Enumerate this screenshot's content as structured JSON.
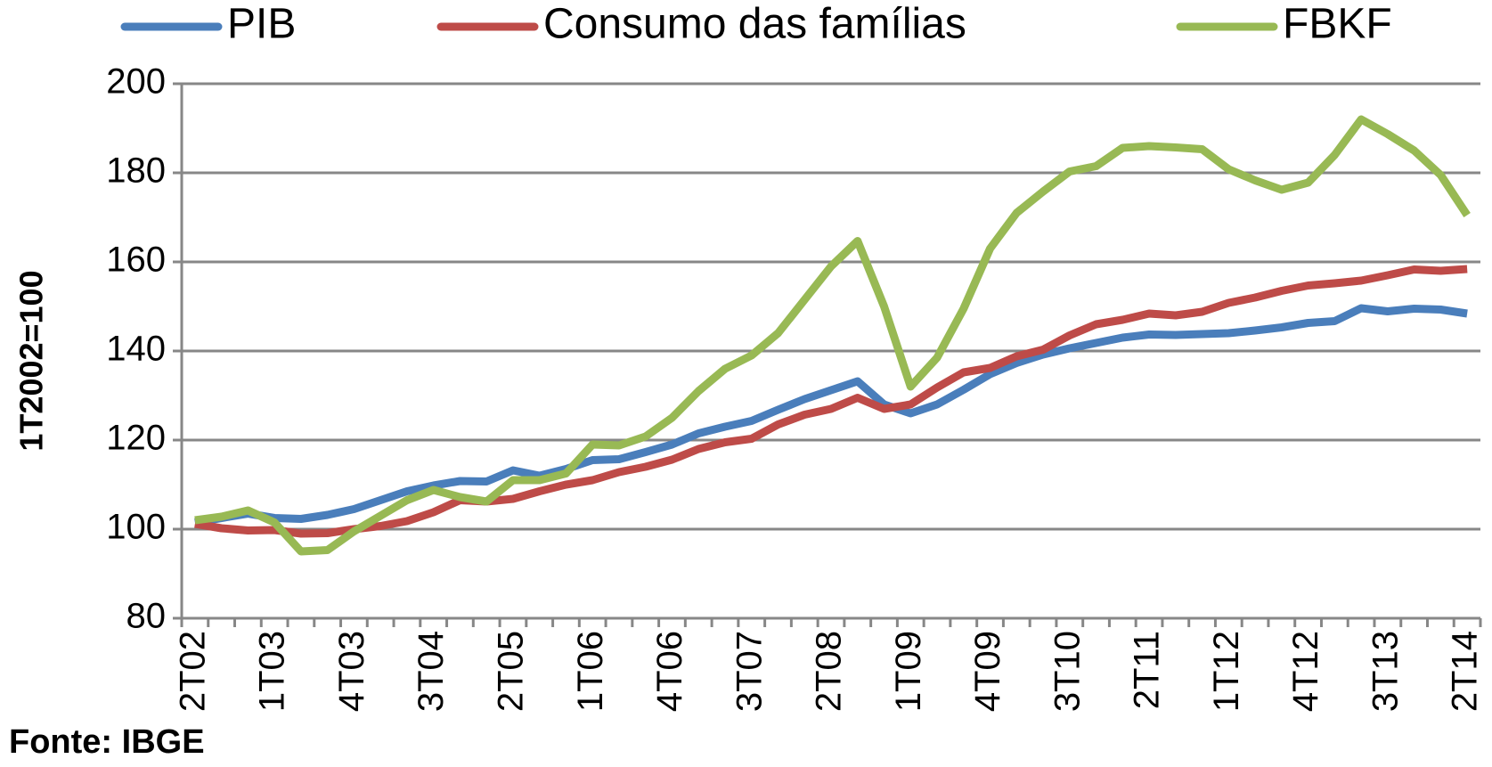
{
  "chart_data": {
    "type": "line",
    "y_label": "1T2002=100",
    "source": "Fonte: IBGE",
    "categories": [
      "2T02",
      null,
      null,
      "1T03",
      null,
      null,
      "4T03",
      null,
      null,
      "3T04",
      null,
      null,
      "2T05",
      null,
      null,
      "1T06",
      null,
      null,
      "4T06",
      null,
      null,
      "3T07",
      null,
      null,
      "2T08",
      null,
      null,
      "1T09",
      null,
      null,
      "4T09",
      null,
      null,
      "3T10",
      null,
      null,
      "2T11",
      null,
      null,
      "1T12",
      null,
      null,
      "4T12",
      null,
      null,
      "3T13",
      null,
      null,
      "2T14"
    ],
    "series": [
      {
        "name": "PIB",
        "color": "#4a7ebb",
        "values": [
          101.5,
          102.5,
          103.5,
          102.5,
          102.3,
          103.2,
          104.5,
          106.5,
          108.5,
          109.8,
          110.8,
          110.7,
          113.2,
          112,
          113.5,
          115.5,
          115.7,
          117.3,
          119,
          121.5,
          123,
          124.3,
          126.8,
          129.2,
          131.2,
          133.2,
          128,
          126,
          128,
          131.3,
          134.8,
          137.3,
          139.2,
          140.6,
          141.8,
          143,
          143.7,
          143.6,
          143.8,
          144,
          144.6,
          145.3,
          146.3,
          146.7,
          149.6,
          148.9,
          149.5,
          149.3,
          148.4
        ]
      },
      {
        "name": "Consumo das famílias",
        "color": "#be4b48",
        "values": [
          101.2,
          100.2,
          99.7,
          99.8,
          99,
          99.1,
          100,
          100.7,
          101.8,
          103.8,
          106.5,
          106.2,
          106.8,
          108.5,
          110,
          111,
          112.8,
          114,
          115.6,
          118,
          119.5,
          120.3,
          123.5,
          125.7,
          127,
          129.5,
          127,
          128,
          131.8,
          135.2,
          136.2,
          138.8,
          140.3,
          143.5,
          146,
          147,
          148.4,
          148,
          148.8,
          150.8,
          152,
          153.5,
          154.7,
          155.2,
          155.8,
          157,
          158.3,
          158,
          158.4
        ]
      },
      {
        "name": "FBKF",
        "color": "#98b954",
        "values": [
          102,
          102.8,
          104.2,
          101.5,
          95,
          95.3,
          99.5,
          103,
          106.5,
          108.8,
          107.2,
          106.2,
          111,
          111,
          112.5,
          119,
          118.8,
          120.8,
          125,
          131,
          136,
          139,
          144,
          151.5,
          159,
          164.7,
          150,
          132,
          138.5,
          149.5,
          163,
          171,
          175.8,
          180.3,
          181.5,
          185.6,
          186,
          185.7,
          185.3,
          180.8,
          178.3,
          176.2,
          177.8,
          184,
          192,
          188.7,
          185,
          179.5,
          170.5
        ]
      }
    ],
    "ylim": [
      80,
      200
    ],
    "yticks": [
      80,
      100,
      120,
      140,
      160,
      180,
      200
    ],
    "grid": true
  }
}
